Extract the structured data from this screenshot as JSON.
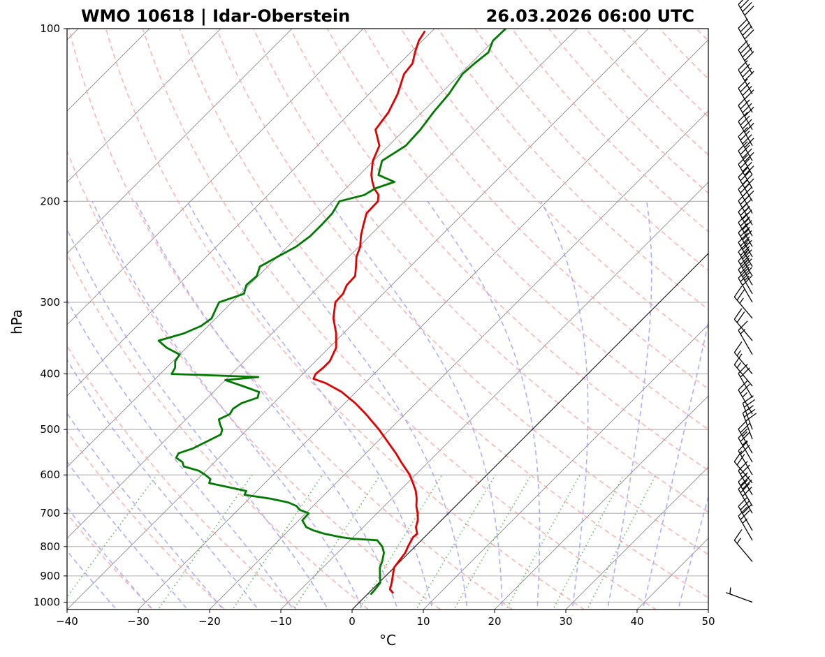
{
  "header": {
    "station": "WMO 10618 | Idar-Oberstein",
    "datetime": "26.03.2026 06:00 UTC"
  },
  "chart_data": {
    "type": "skew-t log-p",
    "xlabel": "°C",
    "ylabel": "hPa",
    "xlim": [
      -40,
      50
    ],
    "ylim_hpa": [
      1030,
      100
    ],
    "x_ticks": [
      -40,
      -30,
      -20,
      -10,
      0,
      10,
      20,
      30,
      40,
      50
    ],
    "x_tick_labels": [
      "−40",
      "−30",
      "−20",
      "−10",
      "0",
      "10",
      "20",
      "30",
      "40",
      "50"
    ],
    "y_ticks": [
      1000,
      900,
      800,
      700,
      600,
      500,
      400,
      300,
      200,
      100
    ],
    "y_tick_labels": [
      "1000",
      "900",
      "800",
      "700",
      "600",
      "500",
      "400",
      "300",
      "200",
      "100"
    ],
    "grid": true,
    "colors": {
      "temperature": "#e00000",
      "dewpoint": "#007a00",
      "dry_adiabats": "#ff9a9a",
      "moist_adiabats": "#a0a0ff",
      "mixing_ratio": "#55bb55",
      "isotherms": "#888888",
      "zero_isotherm": "#000000"
    },
    "series": [
      {
        "key": "temperature",
        "pressure": [
          965,
          950,
          925,
          900,
          870,
          850,
          820,
          800,
          780,
          770,
          760,
          740,
          720,
          700,
          680,
          660,
          640,
          620,
          600,
          570,
          550,
          500,
          470,
          450,
          430,
          415,
          408,
          400,
          390,
          380,
          360,
          340,
          320,
          300,
          290,
          280,
          270,
          260,
          250,
          240,
          230,
          220,
          210,
          200,
          195,
          190,
          185,
          180,
          170,
          160,
          150,
          140,
          130,
          120,
          115,
          110,
          105,
          101
        ],
        "values": [
          3.5,
          2.5,
          1.8,
          1.0,
          0.0,
          -0.2,
          -0.5,
          -1.0,
          -1.4,
          -1.6,
          -1.5,
          -2.6,
          -3.3,
          -4.3,
          -5.5,
          -6.5,
          -7.7,
          -9.2,
          -10.8,
          -13.8,
          -15.8,
          -21.5,
          -25.5,
          -28.5,
          -32.0,
          -35.5,
          -37.8,
          -38.2,
          -38.0,
          -38.0,
          -39.0,
          -41.0,
          -43.5,
          -45.5,
          -45.6,
          -46.3,
          -46.4,
          -47.6,
          -48.9,
          -49.8,
          -51.2,
          -52.4,
          -53.6,
          -53.7,
          -54.5,
          -56.0,
          -57.2,
          -58.3,
          -60.1,
          -61.3,
          -64.1,
          -64.7,
          -66.0,
          -67.9,
          -68.2,
          -69.4,
          -70.5,
          -71.0
        ]
      },
      {
        "key": "dewpoint",
        "pressure": [
          970,
          950,
          925,
          900,
          870,
          850,
          820,
          800,
          780,
          775,
          770,
          760,
          750,
          740,
          720,
          700,
          690,
          680,
          670,
          660,
          650,
          640,
          630,
          620,
          610,
          600,
          590,
          580,
          570,
          560,
          550,
          540,
          525,
          510,
          500,
          490,
          480,
          470,
          460,
          450,
          440,
          430,
          420,
          410,
          405,
          400,
          390,
          380,
          370,
          360,
          350,
          340,
          330,
          320,
          310,
          300,
          290,
          280,
          270,
          260,
          250,
          240,
          230,
          220,
          210,
          200,
          195,
          190,
          185,
          180,
          170,
          160,
          150,
          140,
          130,
          120,
          115,
          110,
          105,
          100
        ],
        "values": [
          0.5,
          0.4,
          0.2,
          -0.8,
          -2.0,
          -2.5,
          -3.5,
          -4.6,
          -6.2,
          -10.0,
          -11.8,
          -14.5,
          -16.5,
          -18.0,
          -19.5,
          -19.6,
          -21.4,
          -22.3,
          -24.0,
          -27.0,
          -31.2,
          -31.5,
          -34.6,
          -37.8,
          -38.2,
          -39.5,
          -41.0,
          -43.7,
          -44.5,
          -46.0,
          -46.3,
          -45.0,
          -44.0,
          -43.0,
          -43.5,
          -44.5,
          -45.4,
          -44.6,
          -44.9,
          -44.5,
          -43.0,
          -43.6,
          -46.7,
          -50.0,
          -45.8,
          -58.4,
          -58.8,
          -59.7,
          -60.0,
          -62.8,
          -64.9,
          -62.4,
          -61.0,
          -60.6,
          -61.2,
          -61.8,
          -59.5,
          -60.4,
          -60.2,
          -61.1,
          -60.0,
          -58.8,
          -58.3,
          -58.3,
          -58.4,
          -59.1,
          -56.5,
          -55.9,
          -54.1,
          -57.3,
          -58.8,
          -57.6,
          -57.8,
          -58.4,
          -58.8,
          -59.7,
          -59.5,
          -59.1,
          -60.1,
          -60.0
        ]
      }
    ],
    "wind_barbs": {
      "pressure": [
        1000,
        850,
        780,
        750,
        700,
        680,
        650,
        620,
        600,
        570,
        550,
        520,
        500,
        470,
        440,
        420,
        400,
        370,
        350,
        320,
        300,
        290,
        280,
        270,
        260,
        250,
        240,
        230,
        220,
        210,
        200,
        190,
        180,
        170,
        160,
        150,
        140,
        130,
        120,
        110,
        100
      ],
      "speed_kt": [
        5,
        15,
        25,
        30,
        30,
        30,
        25,
        20,
        20,
        25,
        25,
        30,
        25,
        25,
        20,
        15,
        15,
        15,
        20,
        25,
        30,
        35,
        35,
        35,
        35,
        35,
        35,
        35,
        35,
        40,
        40,
        40,
        40,
        40,
        40,
        40,
        40,
        40,
        40,
        40,
        40
      ],
      "direction_deg": [
        290,
        320,
        330,
        330,
        330,
        330,
        330,
        320,
        330,
        330,
        330,
        340,
        340,
        330,
        330,
        320,
        320,
        330,
        320,
        320,
        330,
        330,
        330,
        330,
        330,
        330,
        330,
        330,
        330,
        330,
        330,
        330,
        330,
        330,
        330,
        330,
        330,
        330,
        330,
        330,
        330
      ]
    }
  }
}
